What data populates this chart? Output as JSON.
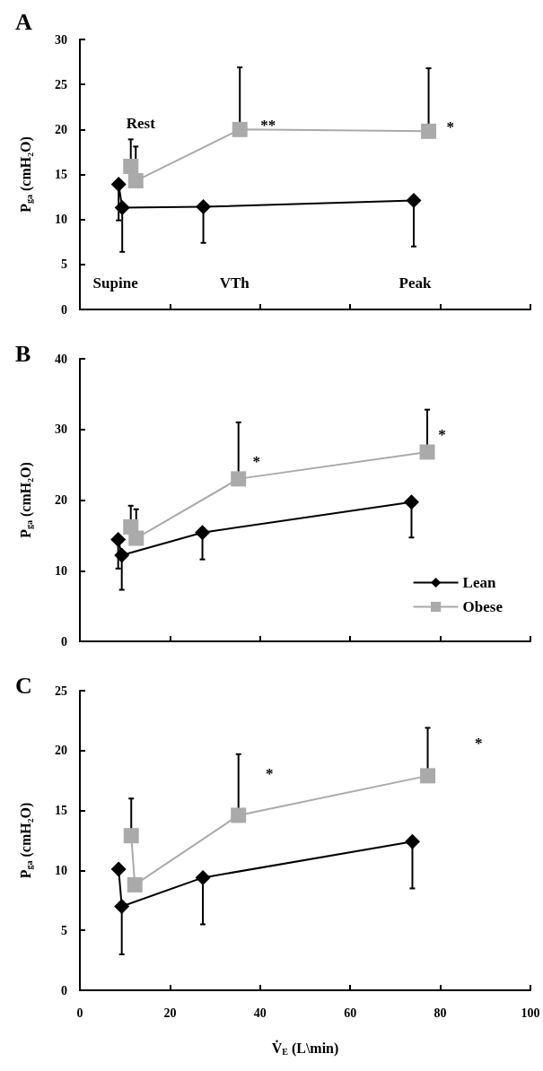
{
  "chart_data": [
    {
      "type": "line",
      "title": "A",
      "ylabel": "P$_{ga}$ (cmH₂O)",
      "xlim": [
        0,
        100
      ],
      "xticks": [
        {
          "value": 0,
          "label": null
        },
        {
          "value": 20,
          "label": null
        },
        {
          "value": 40,
          "label": null
        },
        {
          "value": 60,
          "label": null
        },
        {
          "value": 80,
          "label": null
        },
        {
          "value": 100,
          "label": null
        }
      ],
      "ylim": [
        0,
        30
      ],
      "yticks": [
        0,
        5,
        10,
        15,
        20,
        25,
        30
      ],
      "tick_labels": "y",
      "grid": false,
      "legend": false,
      "series": [
        {
          "color": "#000000",
          "marker": "diamond",
          "x": [
            8.6,
            9.4,
            27.4,
            74.1
          ],
          "values": [
            13.9,
            11.3,
            11.4,
            12.1
          ],
          "errors": [
            [
              9.9,
              13.9
            ],
            [
              6.4,
              11.3
            ],
            [
              7.4,
              11.4
            ],
            [
              7.0,
              12.1
            ]
          ]
        },
        {
          "color": "#aaaaaa",
          "marker": "square",
          "x": [
            11.3,
            12.4,
            35.5,
            77.4
          ],
          "values": [
            15.9,
            14.3,
            20.0,
            19.8
          ],
          "errors": [
            [
              15.9,
              18.9
            ],
            [
              14.3,
              18.1
            ],
            [
              20.0,
              26.9
            ],
            [
              19.8,
              26.8
            ]
          ]
        }
      ],
      "annotations": [
        "Rest",
        "Supine",
        "VTh",
        "Peak",
        "**",
        "*"
      ]
    },
    {
      "type": "line",
      "title": "B",
      "ylabel": "P$_{ga}$ (cmH₂O)",
      "xlim": [
        0,
        100
      ],
      "xticks": [
        {
          "value": 0,
          "label": null
        },
        {
          "value": 20,
          "label": null
        },
        {
          "value": 40,
          "label": null
        },
        {
          "value": 60,
          "label": null
        },
        {
          "value": 80,
          "label": null
        },
        {
          "value": 100,
          "label": null
        }
      ],
      "ylim": [
        0,
        40
      ],
      "yticks": [
        0,
        10,
        20,
        30,
        40
      ],
      "tick_labels": "y",
      "grid": false,
      "legend": "bottom right",
      "series": [
        {
          "name": "Lean",
          "color": "#000000",
          "marker": "diamond",
          "x": [
            8.5,
            9.3,
            27.2,
            73.6
          ],
          "values": [
            14.4,
            12.2,
            15.4,
            19.7
          ],
          "errors": [
            [
              10.3,
              14.4
            ],
            [
              7.3,
              12.2
            ],
            [
              11.6,
              15.4
            ],
            [
              14.7,
              19.7
            ]
          ]
        },
        {
          "name": "Obese",
          "color": "#aaaaaa",
          "marker": "square",
          "x": [
            11.3,
            12.5,
            35.2,
            77.1
          ],
          "values": [
            16.2,
            14.6,
            23.0,
            26.8
          ],
          "errors": [
            [
              16.2,
              19.2
            ],
            [
              14.6,
              18.7
            ],
            [
              23.0,
              31.0
            ],
            [
              26.8,
              32.8
            ]
          ]
        }
      ],
      "annotations": [
        "*",
        "*"
      ]
    },
    {
      "type": "line",
      "title": "C",
      "xlabel": "V̇$_{E}$ (L\\min)",
      "ylabel": "P$_{ga}$ (cmH₂O)",
      "xlim": [
        0,
        100
      ],
      "xticks": [
        0,
        20,
        40,
        60,
        80,
        100
      ],
      "ylim": [
        0,
        25
      ],
      "yticks": [
        0,
        5,
        10,
        15,
        20,
        25
      ],
      "grid": false,
      "legend": false,
      "series": [
        {
          "color": "#000000",
          "marker": "diamond",
          "x": [
            8.6,
            9.3,
            27.3,
            73.8
          ],
          "values": [
            10.1,
            7.0,
            9.4,
            12.4
          ],
          "errors": [
            null,
            [
              3.0,
              7.0
            ],
            [
              5.5,
              9.4
            ],
            [
              8.5,
              12.4
            ]
          ]
        },
        {
          "color": "#aaaaaa",
          "marker": "square",
          "x": [
            11.4,
            12.2,
            35.2,
            77.2
          ],
          "values": [
            12.9,
            8.8,
            14.6,
            17.9
          ],
          "errors": [
            [
              12.9,
              16.0
            ],
            null,
            [
              14.6,
              19.7
            ],
            [
              17.9,
              21.9
            ]
          ]
        }
      ],
      "annotations": [
        "*",
        "*"
      ]
    }
  ]
}
